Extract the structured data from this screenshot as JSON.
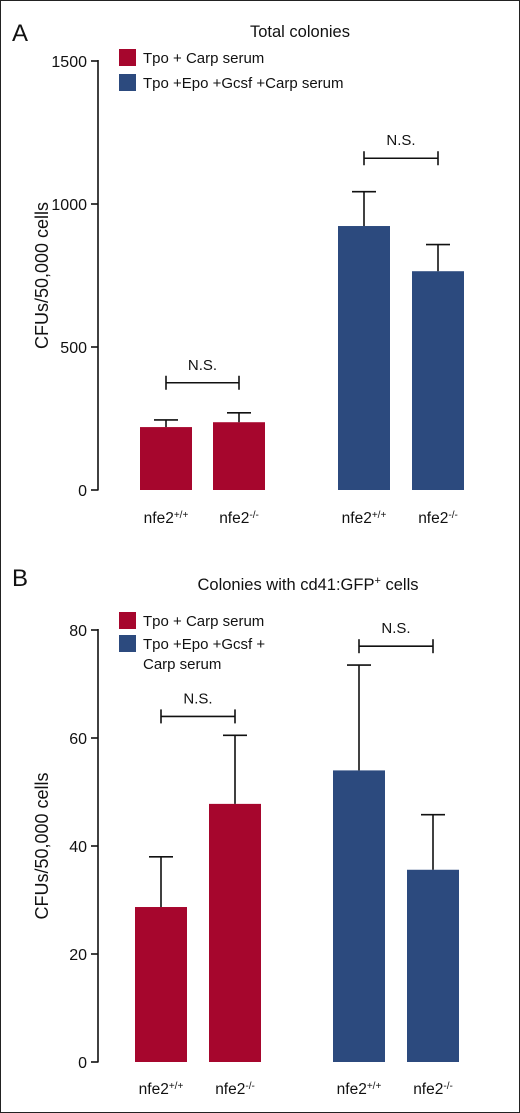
{
  "chart_data": [
    {
      "panel_label": "A",
      "type": "bar",
      "title": "Total colonies",
      "ylabel": "CFUs/50,000 cells",
      "ylim": [
        0,
        1500
      ],
      "yticks": [
        0,
        500,
        1000,
        1500
      ],
      "grid": false,
      "legend_position": "top-left",
      "series": [
        {
          "name": "Tpo + Carp serum",
          "color": "#a6062d",
          "categories": [
            [
              "nfe2",
              "+/+"
            ],
            [
              "nfe2",
              "-/-"
            ]
          ],
          "values": [
            220,
            237
          ],
          "errors": [
            25,
            33
          ]
        },
        {
          "name": "Tpo +Epo +Gcsf +Carp serum",
          "color": "#2c4a7e",
          "categories": [
            [
              "nfe2",
              "+/+"
            ],
            [
              "nfe2",
              "-/-"
            ]
          ],
          "values": [
            923,
            765
          ],
          "errors": [
            120,
            93
          ]
        }
      ],
      "annotations": [
        {
          "text": "N.S.",
          "series_index": 0,
          "at_value": 375
        },
        {
          "text": "N.S.",
          "series_index": 1,
          "at_value": 1160
        }
      ]
    },
    {
      "panel_label": "B",
      "type": "bar",
      "title": "Colonies with cd41:GFP",
      "title_sup": "+",
      "title_tail": " cells",
      "ylabel": "CFUs/50,000 cells",
      "ylim": [
        0,
        80
      ],
      "yticks": [
        0,
        20,
        40,
        60,
        80
      ],
      "grid": false,
      "legend_position": "top-left",
      "series": [
        {
          "name": "Tpo + Carp serum",
          "color": "#a6062d",
          "categories": [
            [
              "nfe2",
              "+/+"
            ],
            [
              "nfe2",
              "-/-"
            ]
          ],
          "values": [
            28.7,
            47.8
          ],
          "errors": [
            9.3,
            12.7
          ]
        },
        {
          "name": "Tpo +Epo +Gcsf +Carp serum",
          "name_lines": [
            "Tpo +Epo +Gcsf +",
            "Carp serum"
          ],
          "color": "#2c4a7e",
          "categories": [
            [
              "nfe2",
              "+/+"
            ],
            [
              "nfe2",
              "-/-"
            ]
          ],
          "values": [
            54,
            35.6
          ],
          "errors": [
            19.5,
            10.2
          ]
        }
      ],
      "annotations": [
        {
          "text": "N.S.",
          "series_index": 0,
          "at_value": 64
        },
        {
          "text": "N.S.",
          "series_index": 1,
          "at_value": 77
        }
      ]
    }
  ]
}
